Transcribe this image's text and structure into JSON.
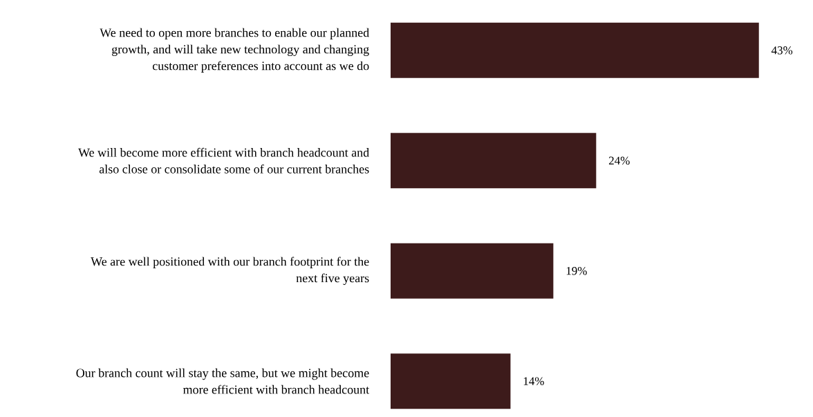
{
  "chart_data": {
    "type": "bar",
    "orientation": "horizontal",
    "color": "#3d1b1b",
    "categories": [
      "We need to open more branches to enable our planned growth, and will take new technology and changing customer preferences into account as we do",
      "We will become more efficient with branch headcount and also close or consolidate some of our current branches",
      "We are well positioned with our branch footprint for the next five years",
      "Our branch count will stay the same, but we might become more efficient with branch headcount"
    ],
    "values": [
      43,
      24,
      19,
      14
    ],
    "value_labels": [
      "43%",
      "24%",
      "19%",
      "14%"
    ]
  }
}
